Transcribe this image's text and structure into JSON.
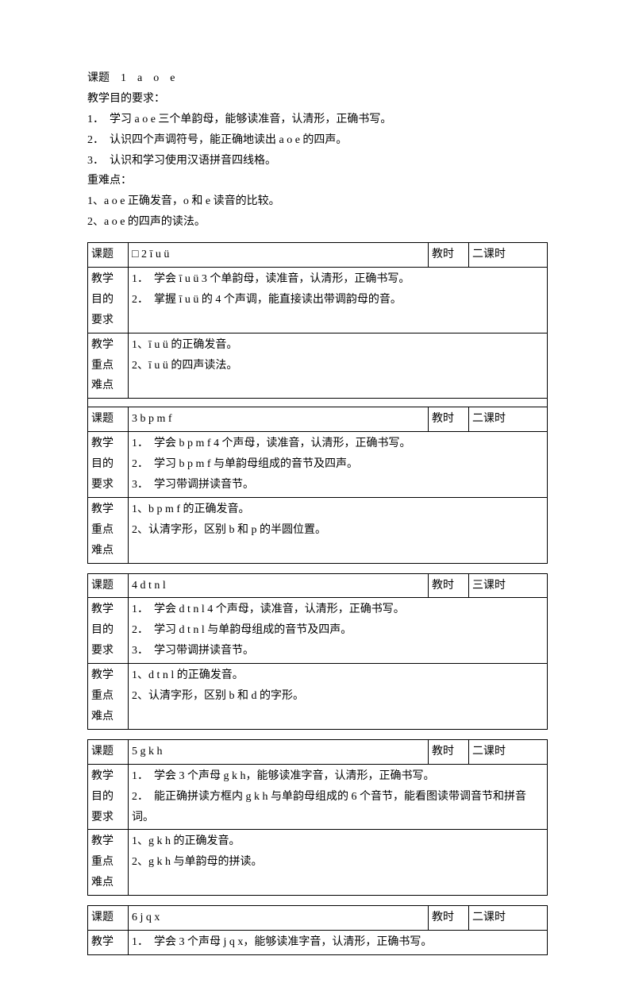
{
  "intro": {
    "title_label": "课题",
    "title_value": "1　a　o　e",
    "goals_label": "教学目的要求：",
    "goals": [
      "1．　学习 a o e 三个单韵母，能够读准音，认清形，正确书写。",
      "2．　认识四个声调符号，能正确地读出 a o e 的四声。",
      "3．　认识和学习使用汉语拼音四线格。"
    ],
    "diff_label": "重难点：",
    "diffs": [
      "1、a o e 正确发音，o 和 e 读音的比较。",
      "2、a o e 的四声的读法。"
    ]
  },
  "labels": {
    "keti": "课题",
    "jiaoshi": "教时",
    "mudi_l1": "教学",
    "mudi_l2": "目的",
    "mudi_l3": "要求",
    "zd_l1": "教学",
    "zd_l2": "重点",
    "zd_l3": "难点"
  },
  "lessons": [
    {
      "title": "□ 2 ī u ü",
      "jiaoshi": "二课时",
      "goals": [
        "1．　学会 ī u ü 3 个单韵母，读准音，认清形，正确书写。",
        "2．　掌握 ī u ü 的 4 个声调，能直接读出带调韵母的音。"
      ],
      "diffs": [
        "1、ī u ü 的正确发音。",
        "2、ī u ü 的四声读法。"
      ],
      "blank_after_diff": true
    },
    {
      "title": "3 b p m f",
      "jiaoshi": "二课时",
      "goals": [
        "1．　学会 b p m f 4 个声母，读准音，认清形，正确书写。",
        "2．　学习 b p m f 与单韵母组成的音节及四声。",
        "3．　学习带调拼读音节。"
      ],
      "diffs": [
        "1、b p m f 的正确发音。",
        "2、认清字形，区别 b 和 p 的半圆位置。"
      ],
      "attached": true
    },
    {
      "title": "4 d t n l",
      "jiaoshi": "三课时",
      "goals": [
        "1．　学会 d t n l 4 个声母，读准音，认清形，正确书写。",
        "2．　学习 d t n l 与单韵母组成的音节及四声。",
        "3．　学习带调拼读音节。"
      ],
      "diffs": [
        "1、d t n l 的正确发音。",
        "2、认清字形，区别 b 和 d 的字形。"
      ]
    },
    {
      "title": "5 g k h",
      "jiaoshi": "二课时",
      "goals": [
        "1．　学会 3 个声母 g k h，能够读准字音，认清形，正确书写。",
        "2．　能正确拼读方框内 g k h 与单韵母组成的 6 个音节，能看图读带调音节和拼音词。"
      ],
      "diffs": [
        "1、g k h 的正确发音。",
        "2、g k h 与单韵母的拼读。"
      ]
    },
    {
      "title": "6 j q x",
      "jiaoshi": "二课时",
      "goals_partial_label": "教学",
      "goals": [
        "1．　学会 3 个声母 j q x，能够读准字音，认清形，正确书写。"
      ],
      "partial": true
    }
  ]
}
